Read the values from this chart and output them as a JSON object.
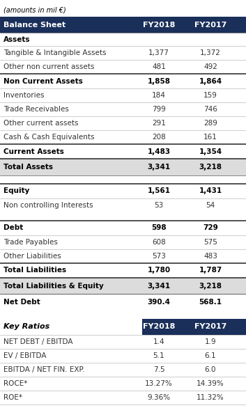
{
  "subtitle": "(amounts in mil €)",
  "header_bg": "#1a2f5a",
  "header_text": "#ffffff",
  "rows": [
    {
      "label": "Balance Sheet",
      "fy2018": "FY2018",
      "fy2017": "FY2017",
      "style": "header"
    },
    {
      "label": "Assets",
      "fy2018": "",
      "fy2017": "",
      "style": "section"
    },
    {
      "label": "Tangible & Intangible Assets",
      "fy2018": "1,377",
      "fy2017": "1,372",
      "style": "normal"
    },
    {
      "label": "Other non current assets",
      "fy2018": "481",
      "fy2017": "492",
      "style": "normal"
    },
    {
      "label": "Non Current Assets",
      "fy2018": "1,858",
      "fy2017": "1,864",
      "style": "bold_line"
    },
    {
      "label": "Inventories",
      "fy2018": "184",
      "fy2017": "159",
      "style": "normal"
    },
    {
      "label": "Trade Receivables",
      "fy2018": "799",
      "fy2017": "746",
      "style": "normal"
    },
    {
      "label": "Other current assets",
      "fy2018": "291",
      "fy2017": "289",
      "style": "normal"
    },
    {
      "label": "Cash & Cash Equivalents",
      "fy2018": "208",
      "fy2017": "161",
      "style": "normal"
    },
    {
      "label": "Current Assets",
      "fy2018": "1,483",
      "fy2017": "1,354",
      "style": "bold_line"
    },
    {
      "label": "Total Assets",
      "fy2018": "3,341",
      "fy2017": "3,218",
      "style": "total"
    },
    {
      "label": "",
      "fy2018": "",
      "fy2017": "",
      "style": "spacer"
    },
    {
      "label": "Equity",
      "fy2018": "1,561",
      "fy2017": "1,431",
      "style": "bold_line"
    },
    {
      "label": "Non controlling Interests",
      "fy2018": "53",
      "fy2017": "54",
      "style": "normal"
    },
    {
      "label": "",
      "fy2018": "",
      "fy2017": "",
      "style": "spacer"
    },
    {
      "label": "Debt",
      "fy2018": "598",
      "fy2017": "729",
      "style": "bold_line"
    },
    {
      "label": "Trade Payables",
      "fy2018": "608",
      "fy2017": "575",
      "style": "normal"
    },
    {
      "label": "Other Liabilities",
      "fy2018": "573",
      "fy2017": "483",
      "style": "normal"
    },
    {
      "label": "Total Liabilities",
      "fy2018": "1,780",
      "fy2017": "1,787",
      "style": "bold_line"
    },
    {
      "label": "Total Liabilities & Equity",
      "fy2018": "3,341",
      "fy2017": "3,218",
      "style": "total"
    },
    {
      "label": "Net Debt",
      "fy2018": "390.4",
      "fy2017": "568.1",
      "style": "bold_only"
    },
    {
      "label": "",
      "fy2018": "",
      "fy2017": "",
      "style": "spacer"
    },
    {
      "label": "Key Ratios",
      "fy2018": "FY2018",
      "fy2017": "FY2017",
      "style": "header2"
    },
    {
      "label": "NET DEBT / EBITDA",
      "fy2018": "1.4",
      "fy2017": "1.9",
      "style": "normal"
    },
    {
      "label": "EV / EBITDA",
      "fy2018": "5.1",
      "fy2017": "6.1",
      "style": "normal"
    },
    {
      "label": "EBITDA / NET FIN. EXP.",
      "fy2018": "7.5",
      "fy2017": "6.0",
      "style": "normal"
    },
    {
      "label": "ROCE*",
      "fy2018": "13.27%",
      "fy2017": "14.39%",
      "style": "normal"
    },
    {
      "label": "ROE*",
      "fy2018": "9.36%",
      "fy2017": "11.32%",
      "style": "normal"
    }
  ]
}
